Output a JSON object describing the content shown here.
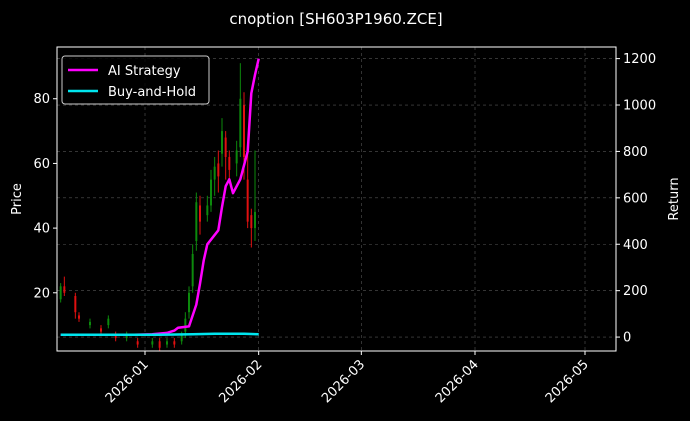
{
  "chart_data": {
    "type": "line",
    "title": "cnoption [SH603P1960.ZCE]",
    "ylabel_left": "Price",
    "ylabel_right": "Return",
    "xlim": [
      "2026-12-09",
      "2026-05-08"
    ],
    "xlim_note": "",
    "x_ticks": [
      "2026-01",
      "2026-02",
      "2026-03",
      "2026-04",
      "2026-05"
    ],
    "x_ticks_dates": [
      "2026-01-01",
      "2026-02-01",
      "2026-03-01",
      "2026-04-01",
      "2026-05-01"
    ],
    "ylim_left": [
      2,
      96
    ],
    "y_ticks_left": [
      20,
      40,
      60,
      80
    ],
    "ylim_right": [
      -60,
      1250
    ],
    "y_ticks_right": [
      0,
      200,
      400,
      600,
      800,
      1000,
      1200
    ],
    "grid": true,
    "legend_position": "top-left",
    "colors": {
      "background": "#000000",
      "ai_strategy": "#ff00ff",
      "buy_and_hold": "#00e5ee",
      "candle_up": "#0c8a0c",
      "candle_down": "#e01010",
      "grid": "#555555"
    },
    "series": [
      {
        "name": "AI Strategy",
        "axis": "right",
        "color": "#ff00ff",
        "points": [
          [
            "2025-12-09",
            10
          ],
          [
            "2025-12-15",
            10
          ],
          [
            "2025-12-22",
            10
          ],
          [
            "2025-12-29",
            10
          ],
          [
            "2026-01-03",
            12
          ],
          [
            "2026-01-07",
            18
          ],
          [
            "2026-01-09",
            28
          ],
          [
            "2026-01-10",
            40
          ],
          [
            "2026-01-13",
            46
          ],
          [
            "2026-01-15",
            140
          ],
          [
            "2026-01-16",
            230
          ],
          [
            "2026-01-17",
            330
          ],
          [
            "2026-01-18",
            400
          ],
          [
            "2026-01-21",
            460
          ],
          [
            "2026-01-22",
            560
          ],
          [
            "2026-01-23",
            650
          ],
          [
            "2026-01-24",
            680
          ],
          [
            "2026-01-25",
            620
          ],
          [
            "2026-01-27",
            680
          ],
          [
            "2026-01-29",
            800
          ],
          [
            "2026-01-30",
            1050
          ],
          [
            "2026-01-31",
            1130
          ],
          [
            "2026-02-01",
            1200
          ]
        ]
      },
      {
        "name": "Buy-and-Hold",
        "axis": "right",
        "color": "#00e5ee",
        "points": [
          [
            "2025-12-09",
            10
          ],
          [
            "2026-01-05",
            10
          ],
          [
            "2026-01-14",
            12
          ],
          [
            "2026-01-20",
            14
          ],
          [
            "2026-01-28",
            14
          ],
          [
            "2026-02-01",
            12
          ]
        ]
      }
    ],
    "candles": [
      {
        "date": "2025-12-09",
        "open": 18,
        "close": 22,
        "low": 17,
        "high": 23
      },
      {
        "date": "2025-12-10",
        "open": 22,
        "close": 20,
        "low": 19,
        "high": 25
      },
      {
        "date": "2025-12-13",
        "open": 19,
        "close": 14,
        "low": 12,
        "high": 20
      },
      {
        "date": "2025-12-14",
        "open": 13,
        "close": 12,
        "low": 11,
        "high": 14
      },
      {
        "date": "2025-12-17",
        "open": 10,
        "close": 11,
        "low": 9,
        "high": 12
      },
      {
        "date": "2025-12-20",
        "open": 9,
        "close": 8,
        "low": 7,
        "high": 10
      },
      {
        "date": "2025-12-22",
        "open": 10,
        "close": 12,
        "low": 9,
        "high": 13
      },
      {
        "date": "2025-12-24",
        "open": 7,
        "close": 6,
        "low": 5,
        "high": 8
      },
      {
        "date": "2025-12-27",
        "open": 6,
        "close": 7,
        "low": 5,
        "high": 8
      },
      {
        "date": "2025-12-30",
        "open": 5,
        "close": 4,
        "low": 3,
        "high": 6
      },
      {
        "date": "2026-01-03",
        "open": 4,
        "close": 5,
        "low": 3,
        "high": 6
      },
      {
        "date": "2026-01-05",
        "open": 5,
        "close": 3,
        "low": 2,
        "high": 6
      },
      {
        "date": "2026-01-07",
        "open": 4,
        "close": 5,
        "low": 3,
        "high": 6
      },
      {
        "date": "2026-01-09",
        "open": 5,
        "close": 4,
        "low": 3,
        "high": 6
      },
      {
        "date": "2026-01-11",
        "open": 5,
        "close": 7,
        "low": 4,
        "high": 8
      },
      {
        "date": "2026-01-12",
        "open": 8,
        "close": 12,
        "low": 6,
        "high": 14
      },
      {
        "date": "2026-01-13",
        "open": 14,
        "close": 20,
        "low": 12,
        "high": 22
      },
      {
        "date": "2026-01-14",
        "open": 22,
        "close": 32,
        "low": 20,
        "high": 35
      },
      {
        "date": "2026-01-15",
        "open": 36,
        "close": 48,
        "low": 33,
        "high": 51
      },
      {
        "date": "2026-01-16",
        "open": 47,
        "close": 42,
        "low": 38,
        "high": 50
      },
      {
        "date": "2026-01-18",
        "open": 44,
        "close": 47,
        "low": 42,
        "high": 50
      },
      {
        "date": "2026-01-19",
        "open": 47,
        "close": 55,
        "low": 45,
        "high": 58
      },
      {
        "date": "2026-01-20",
        "open": 55,
        "close": 59,
        "low": 50,
        "high": 62
      },
      {
        "date": "2026-01-21",
        "open": 60,
        "close": 56,
        "low": 51,
        "high": 64
      },
      {
        "date": "2026-01-22",
        "open": 63,
        "close": 70,
        "low": 59,
        "high": 74
      },
      {
        "date": "2026-01-23",
        "open": 68,
        "close": 62,
        "low": 55,
        "high": 70
      },
      {
        "date": "2026-01-24",
        "open": 62,
        "close": 58,
        "low": 54,
        "high": 64
      },
      {
        "date": "2026-01-26",
        "open": 60,
        "close": 64,
        "low": 56,
        "high": 67
      },
      {
        "date": "2026-01-27",
        "open": 65,
        "close": 80,
        "low": 62,
        "high": 91
      },
      {
        "date": "2026-01-28",
        "open": 78,
        "close": 62,
        "low": 55,
        "high": 82
      },
      {
        "date": "2026-01-29",
        "open": 55,
        "close": 42,
        "low": 40,
        "high": 64
      },
      {
        "date": "2026-01-30",
        "open": 44,
        "close": 40,
        "low": 34,
        "high": 46
      },
      {
        "date": "2026-01-31",
        "open": 40,
        "close": 45,
        "low": 36,
        "high": 64
      }
    ]
  }
}
